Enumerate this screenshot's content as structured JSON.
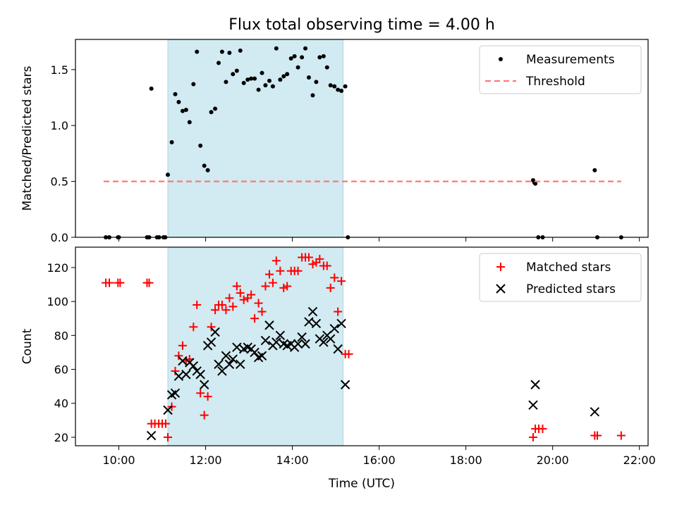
{
  "chart_data": [
    {
      "type": "scatter",
      "title": "Flux total observing time = 4.00 h",
      "xlabel": "",
      "ylabel": "Matched/Predicted stars",
      "xlim": [
        9.0,
        22.2
      ],
      "ylim": [
        0.0,
        1.77
      ],
      "yticks": [
        0.0,
        0.5,
        1.0,
        1.5
      ],
      "ytick_labels": [
        "0.0",
        "0.5",
        "1.0",
        "1.5"
      ],
      "highlight_span": {
        "x_start": 11.13,
        "x_end": 15.17,
        "color": "#add8e6"
      },
      "legend": {
        "placement": "top-right",
        "entries": [
          "Measurements",
          "Threshold"
        ]
      },
      "series": [
        {
          "name": "Measurements",
          "marker": "dot",
          "color": "#000000",
          "points": [
            [
              9.7,
              0
            ],
            [
              9.78,
              0
            ],
            [
              9.98,
              0
            ],
            [
              10.0,
              0
            ],
            [
              10.65,
              0
            ],
            [
              10.7,
              0
            ],
            [
              10.88,
              0
            ],
            [
              10.93,
              0
            ],
            [
              11.03,
              0
            ],
            [
              11.07,
              0
            ],
            [
              10.75,
              1.33
            ],
            [
              11.13,
              0.56
            ],
            [
              11.22,
              0.85
            ],
            [
              11.3,
              1.28
            ],
            [
              11.38,
              1.21
            ],
            [
              11.47,
              1.13
            ],
            [
              11.55,
              1.14
            ],
            [
              11.63,
              1.03
            ],
            [
              11.72,
              1.37
            ],
            [
              11.8,
              1.66
            ],
            [
              11.88,
              0.82
            ],
            [
              11.97,
              0.64
            ],
            [
              12.05,
              0.6
            ],
            [
              12.13,
              1.12
            ],
            [
              12.22,
              1.15
            ],
            [
              12.3,
              1.56
            ],
            [
              12.38,
              1.66
            ],
            [
              12.47,
              1.39
            ],
            [
              12.55,
              1.65
            ],
            [
              12.63,
              1.46
            ],
            [
              12.72,
              1.49
            ],
            [
              12.8,
              1.67
            ],
            [
              12.88,
              1.38
            ],
            [
              12.97,
              1.41
            ],
            [
              13.05,
              1.42
            ],
            [
              13.13,
              1.42
            ],
            [
              13.22,
              1.32
            ],
            [
              13.3,
              1.47
            ],
            [
              13.38,
              1.36
            ],
            [
              13.47,
              1.4
            ],
            [
              13.55,
              1.35
            ],
            [
              13.63,
              1.69
            ],
            [
              13.72,
              1.41
            ],
            [
              13.8,
              1.44
            ],
            [
              13.88,
              1.46
            ],
            [
              13.97,
              1.6
            ],
            [
              14.05,
              1.62
            ],
            [
              14.13,
              1.52
            ],
            [
              14.22,
              1.61
            ],
            [
              14.3,
              1.69
            ],
            [
              14.38,
              1.43
            ],
            [
              14.47,
              1.27
            ],
            [
              14.55,
              1.39
            ],
            [
              14.63,
              1.61
            ],
            [
              14.72,
              1.62
            ],
            [
              14.8,
              1.52
            ],
            [
              14.88,
              1.36
            ],
            [
              14.97,
              1.35
            ],
            [
              15.05,
              1.32
            ],
            [
              15.13,
              1.31
            ],
            [
              15.22,
              1.35
            ],
            [
              15.28,
              0
            ],
            [
              19.55,
              0.51
            ],
            [
              19.58,
              0.49
            ],
            [
              19.6,
              0.48
            ],
            [
              19.67,
              0
            ],
            [
              19.77,
              0
            ],
            [
              20.97,
              0.6
            ],
            [
              21.03,
              0
            ],
            [
              21.58,
              0
            ]
          ]
        },
        {
          "name": "Threshold",
          "style": "dashed",
          "color": "#ff7777",
          "points": [
            [
              9.65,
              0.5
            ],
            [
              21.58,
              0.5
            ]
          ]
        }
      ]
    },
    {
      "type": "scatter",
      "title": "",
      "xlabel": "Time (UTC)",
      "ylabel": "Count",
      "xlim": [
        9.0,
        22.2
      ],
      "ylim": [
        15,
        132
      ],
      "yticks": [
        20,
        40,
        60,
        80,
        100,
        120
      ],
      "ytick_labels": [
        "20",
        "40",
        "60",
        "80",
        "100",
        "120"
      ],
      "xticks": [
        10,
        12,
        14,
        16,
        18,
        20,
        22
      ],
      "xtick_labels": [
        "10:00",
        "12:00",
        "14:00",
        "16:00",
        "18:00",
        "20:00",
        "22:00"
      ],
      "highlight_span": {
        "x_start": 11.13,
        "x_end": 15.17,
        "color": "#add8e6"
      },
      "legend": {
        "placement": "top-right",
        "entries": [
          "Matched stars",
          "Predicted stars"
        ]
      },
      "series": [
        {
          "name": "Matched stars",
          "marker": "plus",
          "color": "#ff0000",
          "points": [
            [
              9.7,
              111
            ],
            [
              9.78,
              111
            ],
            [
              9.98,
              111
            ],
            [
              10.03,
              111
            ],
            [
              10.65,
              111
            ],
            [
              10.7,
              111
            ],
            [
              10.75,
              28
            ],
            [
              10.83,
              28
            ],
            [
              10.92,
              28
            ],
            [
              11.0,
              28
            ],
            [
              11.08,
              28
            ],
            [
              11.13,
              20
            ],
            [
              11.22,
              38
            ],
            [
              11.3,
              59
            ],
            [
              11.38,
              68
            ],
            [
              11.47,
              74
            ],
            [
              11.55,
              65
            ],
            [
              11.63,
              66
            ],
            [
              11.72,
              85
            ],
            [
              11.8,
              98
            ],
            [
              11.88,
              46
            ],
            [
              11.97,
              33
            ],
            [
              12.05,
              44
            ],
            [
              12.13,
              85
            ],
            [
              12.22,
              95
            ],
            [
              12.3,
              98
            ],
            [
              12.38,
              98
            ],
            [
              12.47,
              95
            ],
            [
              12.55,
              102
            ],
            [
              12.63,
              97
            ],
            [
              12.72,
              109
            ],
            [
              12.8,
              105
            ],
            [
              12.88,
              101
            ],
            [
              12.97,
              102
            ],
            [
              13.05,
              104
            ],
            [
              13.13,
              90
            ],
            [
              13.22,
              99
            ],
            [
              13.3,
              94
            ],
            [
              13.38,
              109
            ],
            [
              13.47,
              116
            ],
            [
              13.55,
              111
            ],
            [
              13.63,
              124
            ],
            [
              13.72,
              118
            ],
            [
              13.8,
              108
            ],
            [
              13.88,
              109
            ],
            [
              13.97,
              118
            ],
            [
              14.05,
              118
            ],
            [
              14.13,
              118
            ],
            [
              14.22,
              126
            ],
            [
              14.3,
              126
            ],
            [
              14.38,
              126
            ],
            [
              14.47,
              122
            ],
            [
              14.55,
              123
            ],
            [
              14.63,
              125
            ],
            [
              14.72,
              121
            ],
            [
              14.8,
              121
            ],
            [
              14.88,
              108
            ],
            [
              14.97,
              114
            ],
            [
              15.05,
              94
            ],
            [
              15.13,
              112
            ],
            [
              15.22,
              69
            ],
            [
              15.3,
              69
            ],
            [
              19.55,
              20
            ],
            [
              19.6,
              25
            ],
            [
              19.68,
              25
            ],
            [
              19.77,
              25
            ],
            [
              20.97,
              21
            ],
            [
              21.03,
              21
            ],
            [
              21.58,
              21
            ]
          ]
        },
        {
          "name": "Predicted stars",
          "marker": "x",
          "color": "#000000",
          "points": [
            [
              10.75,
              21
            ],
            [
              11.13,
              36
            ],
            [
              11.22,
              45
            ],
            [
              11.3,
              46
            ],
            [
              11.38,
              56
            ],
            [
              11.47,
              65
            ],
            [
              11.55,
              57
            ],
            [
              11.63,
              64
            ],
            [
              11.72,
              62
            ],
            [
              11.8,
              59
            ],
            [
              11.88,
              57
            ],
            [
              11.97,
              51
            ],
            [
              12.05,
              74
            ],
            [
              12.13,
              76
            ],
            [
              12.22,
              82
            ],
            [
              12.3,
              63
            ],
            [
              12.38,
              59
            ],
            [
              12.47,
              68
            ],
            [
              12.55,
              63
            ],
            [
              12.63,
              66
            ],
            [
              12.72,
              73
            ],
            [
              12.8,
              63
            ],
            [
              12.88,
              72
            ],
            [
              12.97,
              73
            ],
            [
              13.05,
              72
            ],
            [
              13.13,
              70
            ],
            [
              13.22,
              67
            ],
            [
              13.3,
              68
            ],
            [
              13.38,
              77
            ],
            [
              13.47,
              86
            ],
            [
              13.55,
              74
            ],
            [
              13.63,
              76
            ],
            [
              13.72,
              80
            ],
            [
              13.8,
              75
            ],
            [
              13.88,
              74
            ],
            [
              13.97,
              75
            ],
            [
              14.05,
              73
            ],
            [
              14.13,
              75
            ],
            [
              14.22,
              79
            ],
            [
              14.3,
              75
            ],
            [
              14.38,
              88
            ],
            [
              14.47,
              94
            ],
            [
              14.55,
              87
            ],
            [
              14.63,
              78
            ],
            [
              14.72,
              76
            ],
            [
              14.8,
              80
            ],
            [
              14.88,
              78
            ],
            [
              14.97,
              84
            ],
            [
              15.05,
              72
            ],
            [
              15.13,
              87
            ],
            [
              15.22,
              51
            ],
            [
              19.55,
              39
            ],
            [
              19.6,
              51
            ],
            [
              20.97,
              35
            ]
          ]
        }
      ]
    }
  ]
}
